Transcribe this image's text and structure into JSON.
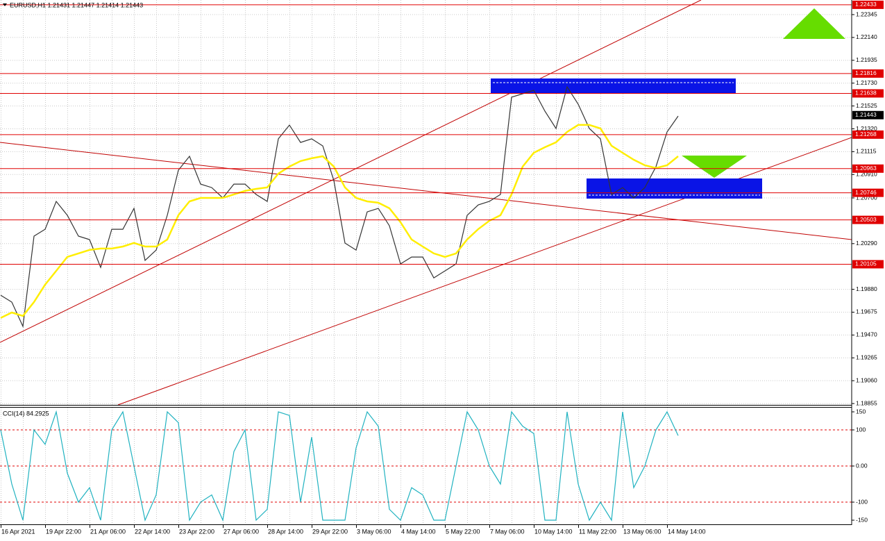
{
  "chart_data": [
    {
      "type": "line",
      "title": "EURUSD,H1  1.21431 1.21447 1.21414 1.21443",
      "categories": [
        "16 Apr 2021",
        null,
        null,
        null,
        "19 Apr 22:00",
        null,
        null,
        null,
        "21 Apr 06:00",
        null,
        null,
        null,
        "22 Apr 14:00",
        null,
        null,
        null,
        "23 Apr 22:00",
        null,
        null,
        null,
        "27 Apr 06:00",
        null,
        null,
        null,
        "28 Apr 14:00",
        null,
        null,
        null,
        "29 Apr 22:00",
        null,
        null,
        null,
        "3 May 06:00",
        null,
        null,
        null,
        "4 May 14:00",
        null,
        null,
        null,
        "5 May 22:00",
        null,
        null,
        null,
        "7 May 06:00",
        null,
        null,
        null,
        "10 May 14:00",
        null,
        null,
        null,
        "11 May 22:00",
        null,
        null,
        null,
        "13 May 06:00",
        null,
        null,
        null,
        "14 May 14:00",
        null
      ],
      "series": [
        {
          "color": "#333333",
          "values": [
            1.19827,
            1.19765,
            1.19547,
            1.20357,
            1.20419,
            1.20669,
            1.20544,
            1.20357,
            1.20326,
            1.20077,
            1.20419,
            1.20419,
            1.20606,
            1.20139,
            1.20232,
            1.20544,
            1.20949,
            1.21074,
            1.20824,
            1.20793,
            1.207,
            1.20824,
            1.20824,
            1.20731,
            1.20669,
            1.2123,
            1.21354,
            1.21198,
            1.2123,
            1.21167,
            1.20856,
            1.20295,
            1.20232,
            1.20575,
            1.20606,
            1.2045,
            1.20108,
            1.2017,
            1.2017,
            1.19983,
            1.20045,
            1.20108,
            1.20544,
            1.20638,
            1.20669,
            1.20731,
            1.21604,
            1.21635,
            1.21666,
            1.21479,
            1.21323,
            1.21697,
            1.21541,
            1.21323,
            1.2123,
            1.20731,
            1.20793,
            1.207,
            1.20793,
            1.2098,
            1.21292,
            1.21435
          ]
        },
        {
          "color": "#ffee00",
          "values": [
            1.19623,
            1.19672,
            1.19641,
            1.19766,
            1.19922,
            1.20046,
            1.20171,
            1.20202,
            1.20233,
            1.20246,
            1.20246,
            1.20264,
            1.20296,
            1.20264,
            1.20264,
            1.20327,
            1.20545,
            1.20669,
            1.207,
            1.207,
            1.207,
            1.20732,
            1.20763,
            1.20781,
            1.20794,
            1.20918,
            1.20981,
            1.21031,
            1.21056,
            1.21074,
            1.20981,
            1.20794,
            1.207,
            1.20669,
            1.20657,
            1.20607,
            1.20482,
            1.20327,
            1.20264,
            1.20202,
            1.20171,
            1.20202,
            1.20327,
            1.2042,
            1.20495,
            1.20545,
            1.20732,
            1.20981,
            1.21105,
            1.21155,
            1.21199,
            1.21292,
            1.21355,
            1.21355,
            1.21324,
            1.21168,
            1.21105,
            1.21043,
            1.20993,
            1.20968,
            1.20993,
            1.21074
          ]
        }
      ],
      "ylim": [
        1.18843,
        1.22476
      ],
      "yticks": [
        1.22345,
        {
          "value": 1.2214,
          "label": "1.22140"
        },
        1.21935,
        {
          "value": 1.2173,
          "label": "1.21730"
        },
        1.21525,
        {
          "value": 1.2132,
          "label": "1.21320"
        },
        1.21115,
        {
          "value": 1.2091,
          "label": "1.20910"
        },
        {
          "value": 1.207,
          "label": "1.20700"
        },
        {
          "value": 1.2029,
          "label": "1.20290"
        },
        {
          "value": 1.1988,
          "label": "1.19880"
        },
        1.19675,
        {
          "value": 1.1947,
          "label": "1.19470"
        },
        1.19265,
        {
          "value": 1.1906,
          "label": "1.19060"
        },
        1.18855
      ],
      "grid": true,
      "levels": [
        1.22433,
        1.21816,
        1.21638,
        1.21268,
        1.20963,
        1.20746,
        1.20503,
        1.20105
      ],
      "level_color": "#e00000",
      "current_price": 1.21443
    },
    {
      "type": "line",
      "title": "CCI(14) 84.2925",
      "series": [
        {
          "color": "#20b2c0",
          "values": [
            100,
            -50,
            -150,
            100,
            60,
            150,
            -20,
            -100,
            -60,
            -150,
            100,
            150,
            0,
            -150,
            -80,
            150,
            120,
            -150,
            -100,
            -80,
            -150,
            40,
            100,
            -150,
            -120,
            150,
            140,
            -100,
            80,
            -150,
            -150,
            -150,
            50,
            150,
            110,
            -120,
            -150,
            -60,
            -80,
            -150,
            -150,
            0,
            150,
            100,
            0,
            -50,
            150,
            110,
            90,
            -150,
            -150,
            150,
            -50,
            -150,
            -100,
            -150,
            150,
            -60,
            0,
            100,
            150,
            84.2925
          ]
        }
      ],
      "ylim": [
        -161.5,
        163.5
      ],
      "yticks": [
        150,
        100,
        {
          "value": 0,
          "label": "0.00"
        },
        -100,
        -150
      ],
      "level_lines": [
        100,
        0,
        -100
      ],
      "level_color": "#e00000"
    }
  ]
}
